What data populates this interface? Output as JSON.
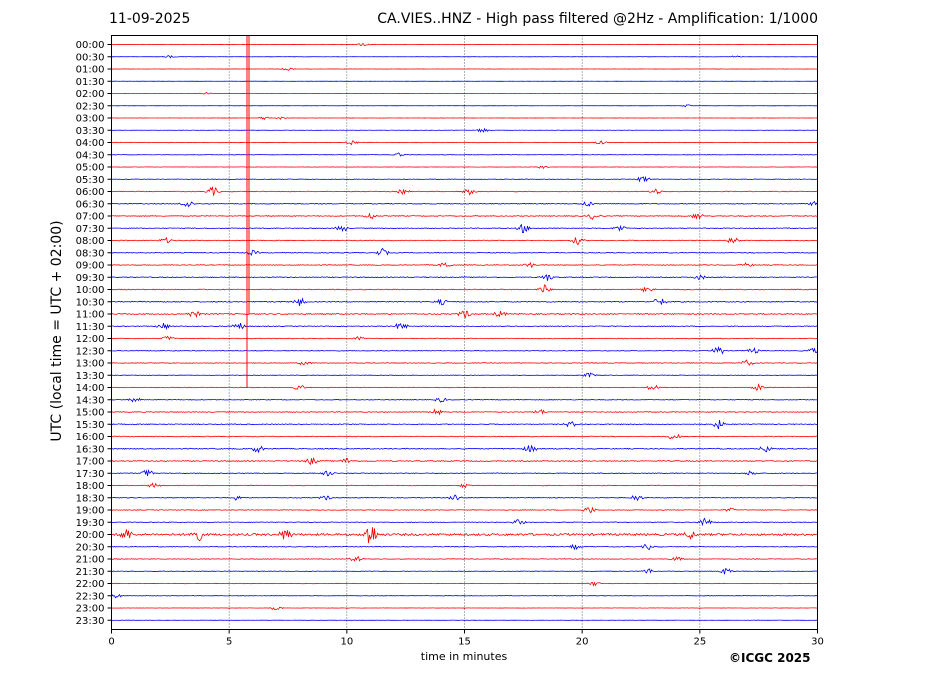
{
  "header": {
    "date": "11-09-2025",
    "station_title": "CA.VIES..HNZ - High pass filtered @2Hz - Amplification: 1/1000"
  },
  "chart_data": {
    "type": "line",
    "title": "CA.VIES..HNZ - High pass filtered @2Hz - Amplification: 1/1000",
    "xlabel": "time in minutes",
    "ylabel": "UTC (local time = UTC + 02:00)",
    "xlim": [
      0,
      30
    ],
    "x_ticks": [
      "0",
      "5",
      "10",
      "15",
      "20",
      "25",
      "30"
    ],
    "y_ticks": [
      "00:00",
      "00:30",
      "01:00",
      "01:30",
      "02:00",
      "02:30",
      "03:00",
      "03:30",
      "04:00",
      "04:30",
      "05:00",
      "05:30",
      "06:00",
      "06:30",
      "07:00",
      "07:30",
      "08:00",
      "08:30",
      "09:00",
      "09:30",
      "10:00",
      "10:30",
      "11:00",
      "11:30",
      "12:00",
      "12:30",
      "13:00",
      "13:30",
      "14:00",
      "14:30",
      "15:00",
      "15:30",
      "16:00",
      "16:30",
      "17:00",
      "17:30",
      "18:00",
      "18:30",
      "19:00",
      "19:30",
      "20:00",
      "20:30",
      "21:00",
      "21:30",
      "22:00",
      "22:30",
      "23:00",
      "23:30"
    ],
    "grid": "vertical dotted",
    "trace_colors": [
      "#ff0000",
      "#0000ff"
    ],
    "trace_color_order": "alternating red/blue per row",
    "traces": [
      {
        "row": "00:00",
        "color": "#ff0000",
        "level": 0.1,
        "events": [
          [
            10.7,
            0.6
          ]
        ]
      },
      {
        "row": "00:30",
        "color": "#0000ff",
        "level": 0.1,
        "events": [
          [
            2.5,
            0.5
          ],
          [
            26.5,
            0.4
          ]
        ]
      },
      {
        "row": "01:00",
        "color": "#ff0000",
        "level": 0.1,
        "events": [
          [
            7.5,
            0.5
          ]
        ]
      },
      {
        "row": "01:30",
        "color": "#0000ff",
        "level": 0.08,
        "events": []
      },
      {
        "row": "02:00",
        "color": "#ff0000",
        "level": 0.1,
        "events": [
          [
            4.0,
            0.4
          ]
        ]
      },
      {
        "row": "02:30",
        "color": "#0000ff",
        "level": 0.08,
        "events": [
          [
            24.5,
            0.4
          ]
        ]
      },
      {
        "row": "03:00",
        "color": "#ff0000",
        "level": 0.08,
        "events": [
          [
            6.5,
            0.6
          ],
          [
            7.2,
            0.5
          ]
        ]
      },
      {
        "row": "03:30",
        "color": "#0000ff",
        "level": 0.15,
        "events": [
          [
            15.8,
            0.8
          ]
        ]
      },
      {
        "row": "04:00",
        "color": "#ff0000",
        "level": 0.2,
        "events": [
          [
            10.2,
            0.6
          ],
          [
            20.8,
            0.6
          ]
        ]
      },
      {
        "row": "04:30",
        "color": "#0000ff",
        "level": 0.2,
        "events": [
          [
            12.2,
            0.6
          ]
        ]
      },
      {
        "row": "05:00",
        "color": "#ff0000",
        "level": 0.15,
        "events": [
          [
            18.3,
            0.5
          ]
        ]
      },
      {
        "row": "05:30",
        "color": "#0000ff",
        "level": 0.25,
        "events": [
          [
            22.6,
            1.2
          ]
        ]
      },
      {
        "row": "06:00",
        "color": "#ff0000",
        "level": 0.35,
        "events": [
          [
            4.3,
            1.6
          ],
          [
            12.4,
            0.8
          ],
          [
            15.2,
            1.0
          ],
          [
            23.1,
            0.9
          ]
        ]
      },
      {
        "row": "06:30",
        "color": "#0000ff",
        "level": 0.35,
        "events": [
          [
            3.2,
            1.6
          ],
          [
            20.2,
            1.0
          ],
          [
            29.9,
            0.8
          ]
        ]
      },
      {
        "row": "07:00",
        "color": "#ff0000",
        "level": 0.4,
        "events": [
          [
            11.0,
            1.1
          ],
          [
            20.5,
            1.2
          ],
          [
            24.9,
            1.2
          ]
        ]
      },
      {
        "row": "07:30",
        "color": "#0000ff",
        "level": 0.35,
        "events": [
          [
            9.8,
            1.2
          ],
          [
            17.5,
            1.6
          ],
          [
            21.6,
            1.1
          ]
        ]
      },
      {
        "row": "08:00",
        "color": "#ff0000",
        "level": 0.4,
        "events": [
          [
            2.3,
            0.9
          ],
          [
            19.8,
            1.3
          ],
          [
            26.4,
            1.3
          ]
        ]
      },
      {
        "row": "08:30",
        "color": "#0000ff",
        "level": 0.35,
        "events": [
          [
            11.5,
            1.4
          ],
          [
            6.0,
            0.8
          ]
        ]
      },
      {
        "row": "09:00",
        "color": "#ff0000",
        "level": 0.35,
        "events": [
          [
            14.2,
            1.0
          ],
          [
            17.8,
            0.8
          ],
          [
            27.0,
            0.7
          ]
        ]
      },
      {
        "row": "09:30",
        "color": "#0000ff",
        "level": 0.4,
        "events": [
          [
            18.5,
            1.3
          ],
          [
            25.0,
            0.8
          ]
        ]
      },
      {
        "row": "10:00",
        "color": "#ff0000",
        "level": 0.4,
        "events": [
          [
            18.4,
            1.6
          ],
          [
            22.8,
            1.2
          ]
        ]
      },
      {
        "row": "10:30",
        "color": "#0000ff",
        "level": 0.45,
        "events": [
          [
            8.0,
            1.3
          ],
          [
            14.0,
            1.0
          ],
          [
            23.3,
            1.5
          ]
        ]
      },
      {
        "row": "11:00",
        "color": "#ff0000",
        "level": 0.5,
        "events": [
          [
            3.5,
            1.2
          ],
          [
            15.0,
            1.4
          ],
          [
            16.5,
            1.0
          ]
        ]
      },
      {
        "row": "11:30",
        "color": "#0000ff",
        "level": 0.35,
        "events": [
          [
            2.2,
            1.3
          ],
          [
            5.4,
            1.3
          ],
          [
            12.3,
            1.4
          ]
        ]
      },
      {
        "row": "12:00",
        "color": "#ff0000",
        "level": 0.35,
        "events": [
          [
            2.4,
            0.8
          ],
          [
            10.5,
            0.6
          ]
        ]
      },
      {
        "row": "12:30",
        "color": "#0000ff",
        "level": 0.3,
        "events": [
          [
            25.8,
            1.6
          ],
          [
            27.3,
            1.0
          ],
          [
            29.8,
            0.9
          ]
        ]
      },
      {
        "row": "13:00",
        "color": "#ff0000",
        "level": 0.3,
        "events": [
          [
            8.2,
            0.8
          ],
          [
            27.0,
            1.0
          ]
        ]
      },
      {
        "row": "13:30",
        "color": "#0000ff",
        "level": 0.25,
        "events": [
          [
            20.3,
            0.8
          ]
        ]
      },
      {
        "row": "14:00",
        "color": "#ff0000",
        "level": 0.3,
        "events": [
          [
            8.0,
            0.9
          ],
          [
            23.0,
            1.1
          ],
          [
            27.5,
            1.1
          ]
        ]
      },
      {
        "row": "14:30",
        "color": "#0000ff",
        "level": 0.3,
        "events": [
          [
            1.0,
            0.8
          ],
          [
            14.0,
            0.8
          ]
        ]
      },
      {
        "row": "15:00",
        "color": "#ff0000",
        "level": 0.35,
        "events": [
          [
            13.8,
            1.2
          ],
          [
            18.2,
            0.9
          ]
        ]
      },
      {
        "row": "15:30",
        "color": "#0000ff",
        "level": 0.4,
        "events": [
          [
            19.5,
            1.0
          ],
          [
            25.8,
            1.5
          ]
        ]
      },
      {
        "row": "16:00",
        "color": "#ff0000",
        "level": 0.35,
        "events": [
          [
            23.9,
            1.2
          ]
        ]
      },
      {
        "row": "16:30",
        "color": "#0000ff",
        "level": 0.45,
        "events": [
          [
            6.2,
            1.3
          ],
          [
            17.8,
            1.3
          ],
          [
            27.8,
            1.2
          ]
        ]
      },
      {
        "row": "17:00",
        "color": "#ff0000",
        "level": 0.45,
        "events": [
          [
            8.5,
            1.2
          ],
          [
            10.0,
            1.0
          ]
        ]
      },
      {
        "row": "17:30",
        "color": "#0000ff",
        "level": 0.35,
        "events": [
          [
            1.5,
            1.3
          ],
          [
            9.2,
            0.9
          ],
          [
            27.2,
            0.9
          ]
        ]
      },
      {
        "row": "18:00",
        "color": "#ff0000",
        "level": 0.3,
        "events": [
          [
            1.8,
            0.9
          ],
          [
            15.0,
            0.7
          ]
        ]
      },
      {
        "row": "18:30",
        "color": "#0000ff",
        "level": 0.3,
        "events": [
          [
            5.3,
            0.8
          ],
          [
            14.6,
            1.2
          ],
          [
            22.3,
            1.2
          ],
          [
            9.1,
            0.8
          ]
        ]
      },
      {
        "row": "19:00",
        "color": "#ff0000",
        "level": 0.3,
        "events": [
          [
            20.3,
            1.3
          ],
          [
            26.3,
            0.6
          ]
        ]
      },
      {
        "row": "19:30",
        "color": "#0000ff",
        "level": 0.3,
        "events": [
          [
            17.3,
            1.0
          ],
          [
            25.2,
            1.8
          ]
        ]
      },
      {
        "row": "20:00",
        "color": "#ff0000",
        "level": 1.0,
        "events": [
          [
            0.6,
            2.2
          ],
          [
            3.6,
            3.0
          ],
          [
            7.4,
            2.0
          ],
          [
            11.0,
            4.5
          ],
          [
            24.6,
            1.3
          ]
        ]
      },
      {
        "row": "20:30",
        "color": "#0000ff",
        "level": 0.3,
        "events": [
          [
            19.7,
            0.8
          ],
          [
            22.8,
            1.0
          ]
        ]
      },
      {
        "row": "21:00",
        "color": "#ff0000",
        "level": 0.3,
        "events": [
          [
            10.4,
            1.0
          ],
          [
            24.0,
            0.7
          ]
        ]
      },
      {
        "row": "21:30",
        "color": "#0000ff",
        "level": 0.25,
        "events": [
          [
            22.8,
            1.0
          ],
          [
            26.1,
            1.2
          ]
        ]
      },
      {
        "row": "22:00",
        "color": "#ff0000",
        "level": 0.2,
        "events": [
          [
            20.5,
            0.7
          ]
        ]
      },
      {
        "row": "22:30",
        "color": "#0000ff",
        "level": 0.2,
        "events": [
          [
            0.2,
            0.8
          ]
        ]
      },
      {
        "row": "23:00",
        "color": "#ff0000",
        "level": 0.15,
        "events": [
          [
            7.0,
            0.7
          ]
        ]
      },
      {
        "row": "23:30",
        "color": "#0000ff",
        "level": 0.1,
        "events": []
      }
    ],
    "vertical_spike": {
      "x": 5.8,
      "from_row": "00:00",
      "to_row": "14:00",
      "color": "#ff0000"
    }
  },
  "footer": {
    "copyright": "©ICGC 2025"
  }
}
